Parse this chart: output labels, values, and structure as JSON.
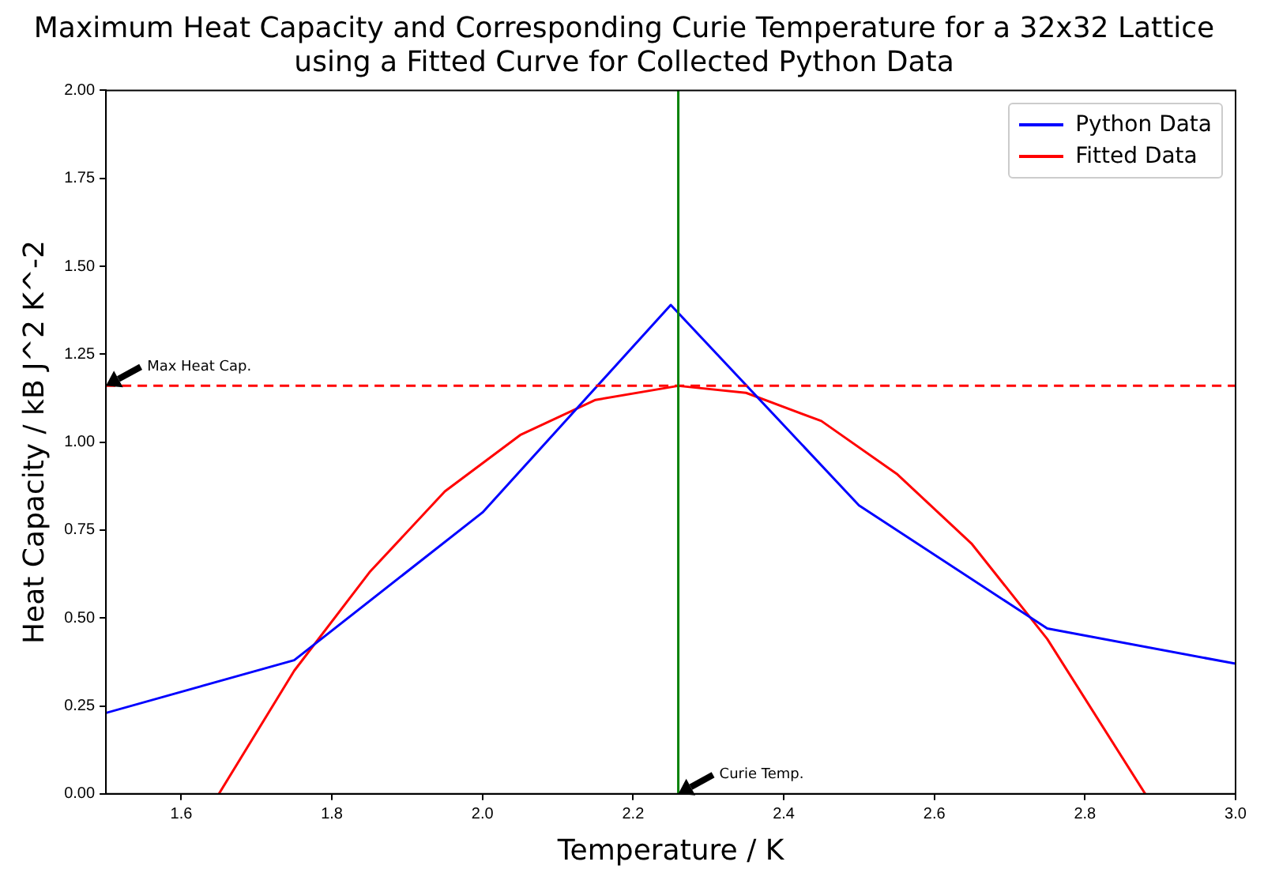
{
  "chart_data": {
    "type": "line",
    "title": "Maximum Heat Capacity and Corresponding Curie Temperature for a 32x32 Lattice\nusing a Fitted Curve for Collected Python Data",
    "xlabel": "Temperature / K",
    "ylabel": "Heat Capacity / kB J^2 K^-2",
    "series": [
      {
        "name": "Python Data",
        "color": "#0000ff",
        "x": [
          1.5,
          1.75,
          2.0,
          2.25,
          2.5,
          2.75,
          3.0
        ],
        "values": [
          0.23,
          0.38,
          0.8,
          1.39,
          0.82,
          0.47,
          0.37
        ]
      },
      {
        "name": "Fitted Data",
        "color": "#ff0000",
        "x": [
          1.65,
          1.75,
          1.85,
          1.95,
          2.05,
          2.15,
          2.26,
          2.35,
          2.45,
          2.55,
          2.65,
          2.75,
          2.88
        ],
        "values": [
          0,
          0.35,
          0.63,
          0.86,
          1.02,
          1.12,
          1.16,
          1.14,
          1.06,
          0.91,
          0.71,
          0.44,
          0
        ]
      }
    ],
    "xlim": [
      1.5,
      3.0
    ],
    "xticks": [
      {
        "value": 1.6,
        "label": "1.6"
      },
      {
        "value": 1.8,
        "label": "1.8"
      },
      {
        "value": 2.0,
        "label": "2.0"
      },
      {
        "value": 2.2,
        "label": "2.2"
      },
      {
        "value": 2.4,
        "label": "2.4"
      },
      {
        "value": 2.6,
        "label": "2.6"
      },
      {
        "value": 2.8,
        "label": "2.8"
      },
      {
        "value": 3.0,
        "label": "3.0"
      }
    ],
    "ylim": [
      0,
      2
    ],
    "yticks": [
      {
        "value": 0,
        "label": "0.00"
      },
      {
        "value": 0.25,
        "label": "0.25"
      },
      {
        "value": 0.5,
        "label": "0.50"
      },
      {
        "value": 0.75,
        "label": "0.75"
      },
      {
        "value": 1,
        "label": "1.00"
      },
      {
        "value": 1.25,
        "label": "1.25"
      },
      {
        "value": 1.5,
        "label": "1.50"
      },
      {
        "value": 1.75,
        "label": "1.75"
      },
      {
        "value": 2,
        "label": "2.00"
      }
    ],
    "ref_lines": [
      {
        "axis": "y",
        "value": 1.16,
        "color": "#ff0000",
        "line_style": "dashed"
      },
      {
        "axis": "x",
        "value": 2.26,
        "color": "#008000",
        "line_style": "solid"
      }
    ],
    "annotations": [
      {
        "text": "Max Heat Cap.",
        "x": 1.5,
        "y": 1.16
      },
      {
        "text": "Curie Temp.",
        "x": 2.26,
        "y": 0
      }
    ],
    "legend": "top right",
    "grid": false,
    "marker": "none",
    "line_style": "solid"
  }
}
